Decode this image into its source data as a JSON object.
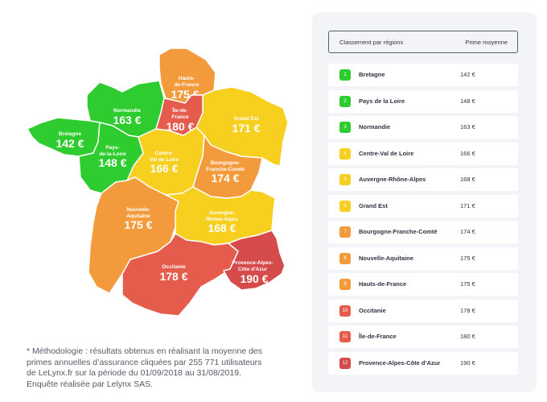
{
  "colors": {
    "green": "#2ecc2e",
    "yellow": "#f7cf1f",
    "orange": "#f39b3c",
    "red_light": "#e55c4d",
    "red_dark": "#d54a4a",
    "panel_bg": "#f3f4f7"
  },
  "map": {
    "regions": [
      {
        "id": "hauts-de-france",
        "name": [
          "Hauts-",
          "de-France"
        ],
        "price": "175 €",
        "color": "#f39b3c"
      },
      {
        "id": "normandie",
        "name": [
          "Normandie"
        ],
        "price": "163 €",
        "color": "#2ecc2e"
      },
      {
        "id": "ile-de-france",
        "name": [
          "Île-de-",
          "France"
        ],
        "price": "180 €",
        "color": "#e55c4d"
      },
      {
        "id": "grand-est",
        "name": [
          "Grand Est"
        ],
        "price": "171 €",
        "color": "#f7cf1f"
      },
      {
        "id": "bretagne",
        "name": [
          "Bretagne"
        ],
        "price": "142 €",
        "color": "#2ecc2e"
      },
      {
        "id": "pays-de-la-loire",
        "name": [
          "Pays-",
          "de-la-Loire"
        ],
        "price": "148 €",
        "color": "#2ecc2e"
      },
      {
        "id": "centre-val-de-loire",
        "name": [
          "Centre-",
          "Val de Loire"
        ],
        "price": "166 €",
        "color": "#f7cf1f"
      },
      {
        "id": "bourgogne-franche-comte",
        "name": [
          "Bourgogne-",
          "Franche-Comté"
        ],
        "price": "174 €",
        "color": "#f39b3c"
      },
      {
        "id": "nouvelle-aquitaine",
        "name": [
          "Nouvelle-",
          "Aquitaine"
        ],
        "price": "175 €",
        "color": "#f39b3c"
      },
      {
        "id": "auvergne-rhone-alpes",
        "name": [
          "Auvergne-",
          "Rhône-Alpes"
        ],
        "price": "168 €",
        "color": "#f7cf1f"
      },
      {
        "id": "occitanie",
        "name": [
          "Occitanie"
        ],
        "price": "178 €",
        "color": "#e55c4d"
      },
      {
        "id": "provence-alpes-cote-d-azur",
        "name": [
          "Provence-Alpes-",
          "Côte d'Azur"
        ],
        "price": "190 €",
        "color": "#d54a4a"
      }
    ]
  },
  "methodology": {
    "line1": "* Méthodologie : résultats obtenus en réalisant la moyenne des",
    "line2": "primes annuelles d’assurance cliquées par 255 771 utilisateurs",
    "line3": "de LeLynx.fr sur la période du 01/09/2018 au 31/08/2019.",
    "line4": "Enquête réalisée par Lelynx SAS."
  },
  "ranking": {
    "col_region": "Classement par régions",
    "col_premium": "Prime moyenne",
    "rows": [
      {
        "rank": "1",
        "region": "Bretagne",
        "premium": "142 €",
        "color": "#2ecc2e"
      },
      {
        "rank": "2",
        "region": "Pays de la Loire",
        "premium": "148 €",
        "color": "#2ecc2e"
      },
      {
        "rank": "3",
        "region": "Normandie",
        "premium": "163 €",
        "color": "#2ecc2e"
      },
      {
        "rank": "4",
        "region": "Centre-Val de Loire",
        "premium": "166 €",
        "color": "#f7cf1f"
      },
      {
        "rank": "5",
        "region": "Auvergne-Rhône-Alpes",
        "premium": "168 €",
        "color": "#f7cf1f"
      },
      {
        "rank": "6",
        "region": "Grand Est",
        "premium": "171 €",
        "color": "#f7cf1f"
      },
      {
        "rank": "7",
        "region": "Bourgogne-Franche-Comté",
        "premium": "174 €",
        "color": "#f39b3c"
      },
      {
        "rank": "8",
        "region": "Nouvelle-Aquitaine",
        "premium": "175 €",
        "color": "#f39b3c"
      },
      {
        "rank": "9",
        "region": "Hauts-de-France",
        "premium": "175 €",
        "color": "#f39b3c"
      },
      {
        "rank": "10",
        "region": "Occitanie",
        "premium": "178 €",
        "color": "#e55c4d"
      },
      {
        "rank": "11",
        "region": "Île-de-France",
        "premium": "180 €",
        "color": "#e55c4d"
      },
      {
        "rank": "12",
        "region": "Provence-Alpes-Côte d’Azur",
        "premium": "190 €",
        "color": "#d54a4a"
      }
    ]
  }
}
